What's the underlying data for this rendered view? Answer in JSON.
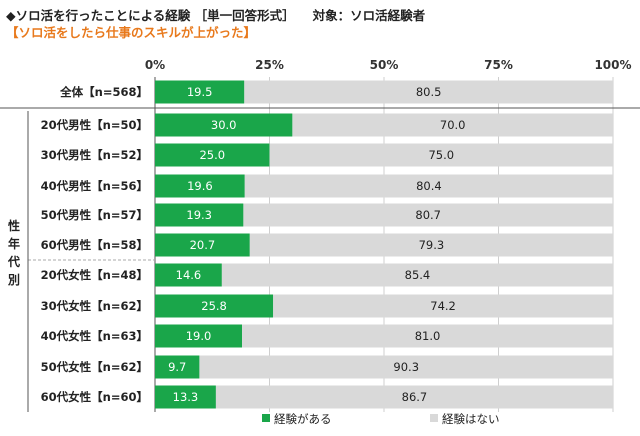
{
  "header": {
    "title": "◆ソロ活を行ったことによる経験 ［単一回答形式］",
    "target": "対象：ソロ活経験者",
    "subtitle": "【ソロ活をしたら仕事のスキルが上がった】"
  },
  "chart_data": {
    "type": "bar",
    "orientation": "horizontal",
    "stacked": true,
    "percent_axis": true,
    "xlim": [
      0,
      100
    ],
    "x_ticks": [
      "0%",
      "25%",
      "50%",
      "75%",
      "100%"
    ],
    "grid": true,
    "legend_position": "bottom",
    "group_label": "性年代別",
    "categories": [
      "全体【n=568】",
      "20代男性【n=50】",
      "30代男性【n=52】",
      "40代男性【n=56】",
      "50代男性【n=57】",
      "60代男性【n=58】",
      "20代女性【n=48】",
      "30代女性【n=62】",
      "40代女性【n=63】",
      "50代女性【n=62】",
      "60代女性【n=60】"
    ],
    "series": [
      {
        "name": "経験がある",
        "color": "#1aa64a",
        "values": [
          19.5,
          30.0,
          25.0,
          19.6,
          19.3,
          20.7,
          14.6,
          25.8,
          19.0,
          9.7,
          13.3
        ]
      },
      {
        "name": "経験はない",
        "color": "#d9d9d9",
        "values": [
          80.5,
          70.0,
          75.0,
          80.4,
          80.7,
          79.3,
          85.4,
          74.2,
          81.0,
          90.3,
          86.7
        ]
      }
    ]
  }
}
